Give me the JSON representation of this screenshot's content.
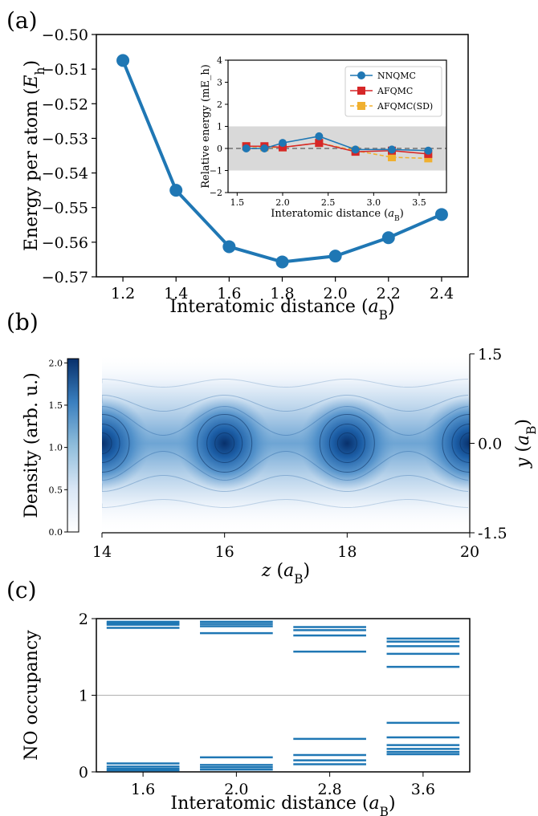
{
  "colors": {
    "blue": "#1f77b4",
    "red": "#d62728",
    "orange": "#f0b030",
    "shade": "#d9d9d9",
    "zero_line": "#808080"
  },
  "panel_labels": {
    "a": "(a)",
    "b": "(b)",
    "c": "(c)"
  },
  "chart_data": [
    {
      "id": "a",
      "type": "line",
      "xlabel": "Interatomic distance (a_B)",
      "ylabel": "Energy per atom (E_h)",
      "x": [
        1.2,
        1.4,
        1.6,
        1.8,
        2.0,
        2.2,
        2.4
      ],
      "values": [
        -0.5075,
        -0.545,
        -0.5613,
        -0.5657,
        -0.564,
        -0.5587,
        -0.552
      ],
      "xlim": [
        1.1,
        2.5
      ],
      "ylim": [
        -0.57,
        -0.5
      ],
      "xticks": [
        "1.2",
        "1.4",
        "1.6",
        "1.8",
        "2.0",
        "2.2",
        "2.4"
      ],
      "yticks": [
        "−0.57",
        "−0.56",
        "−0.55",
        "−0.54",
        "−0.53",
        "−0.52",
        "−0.51",
        "−0.50"
      ],
      "inset": {
        "type": "line",
        "xlabel": "Interatomic distance (a_B)",
        "ylabel": "Relative energy (mE_h)",
        "xlim": [
          1.4,
          3.8
        ],
        "ylim": [
          -2,
          4
        ],
        "shaded_band": [
          -1,
          1
        ],
        "xticks": [
          "1.5",
          "2.0",
          "2.5",
          "3.0",
          "3.5"
        ],
        "yticks": [
          "−2",
          "−1",
          "0",
          "1",
          "2",
          "3",
          "4"
        ],
        "x": [
          1.6,
          1.8,
          2.0,
          2.4,
          2.8,
          3.2,
          3.6
        ],
        "series": [
          {
            "name": "NNQMC",
            "values": [
              0.0,
              0.0,
              0.25,
              0.55,
              -0.05,
              -0.05,
              -0.1
            ]
          },
          {
            "name": "AFQMC",
            "values": [
              0.1,
              0.1,
              0.05,
              0.25,
              -0.15,
              -0.1,
              -0.25
            ]
          },
          {
            "name": "AFQMC(SD)",
            "values": [
              0.1,
              0.05,
              0.05,
              0.25,
              -0.1,
              -0.4,
              -0.45
            ]
          }
        ]
      }
    },
    {
      "id": "b",
      "type": "heatmap",
      "xlabel": "z (a_B)",
      "ylabel": "y (a_B)",
      "colorbar_label": "Density (arb. u.)",
      "xlim": [
        14,
        20
      ],
      "ylim": [
        -1.5,
        1.5
      ],
      "xticks": [
        "14",
        "16",
        "18",
        "20"
      ],
      "yticks": [
        "1.5",
        "0.0",
        "-1.5"
      ],
      "colorbar_ticks": [
        "0.0",
        "0.5",
        "1.0",
        "1.5",
        "2.0"
      ],
      "colorbar_range": [
        0,
        2.05
      ],
      "nuclei_z": [
        14.0,
        16.0,
        18.0,
        20.0
      ],
      "peak_density": 2.0
    },
    {
      "id": "c",
      "type": "bar",
      "xlabel": "Interatomic distance (a_B)",
      "ylabel": "NO occupancy",
      "categories": [
        "1.6",
        "2.0",
        "2.8",
        "3.6"
      ],
      "ylim": [
        0,
        2
      ],
      "yticks": [
        "0",
        "1",
        "2"
      ],
      "occupancies": [
        [
          1.96,
          1.94,
          1.92,
          1.88,
          0.11,
          0.07,
          0.04,
          0.02
        ],
        [
          1.96,
          1.93,
          1.9,
          1.81,
          0.19,
          0.09,
          0.06,
          0.03
        ],
        [
          1.89,
          1.85,
          1.78,
          1.57,
          0.43,
          0.22,
          0.15,
          0.1
        ],
        [
          1.74,
          1.7,
          1.64,
          1.54,
          1.37,
          0.64,
          0.45,
          0.35,
          0.3,
          0.26,
          0.23
        ]
      ]
    }
  ]
}
